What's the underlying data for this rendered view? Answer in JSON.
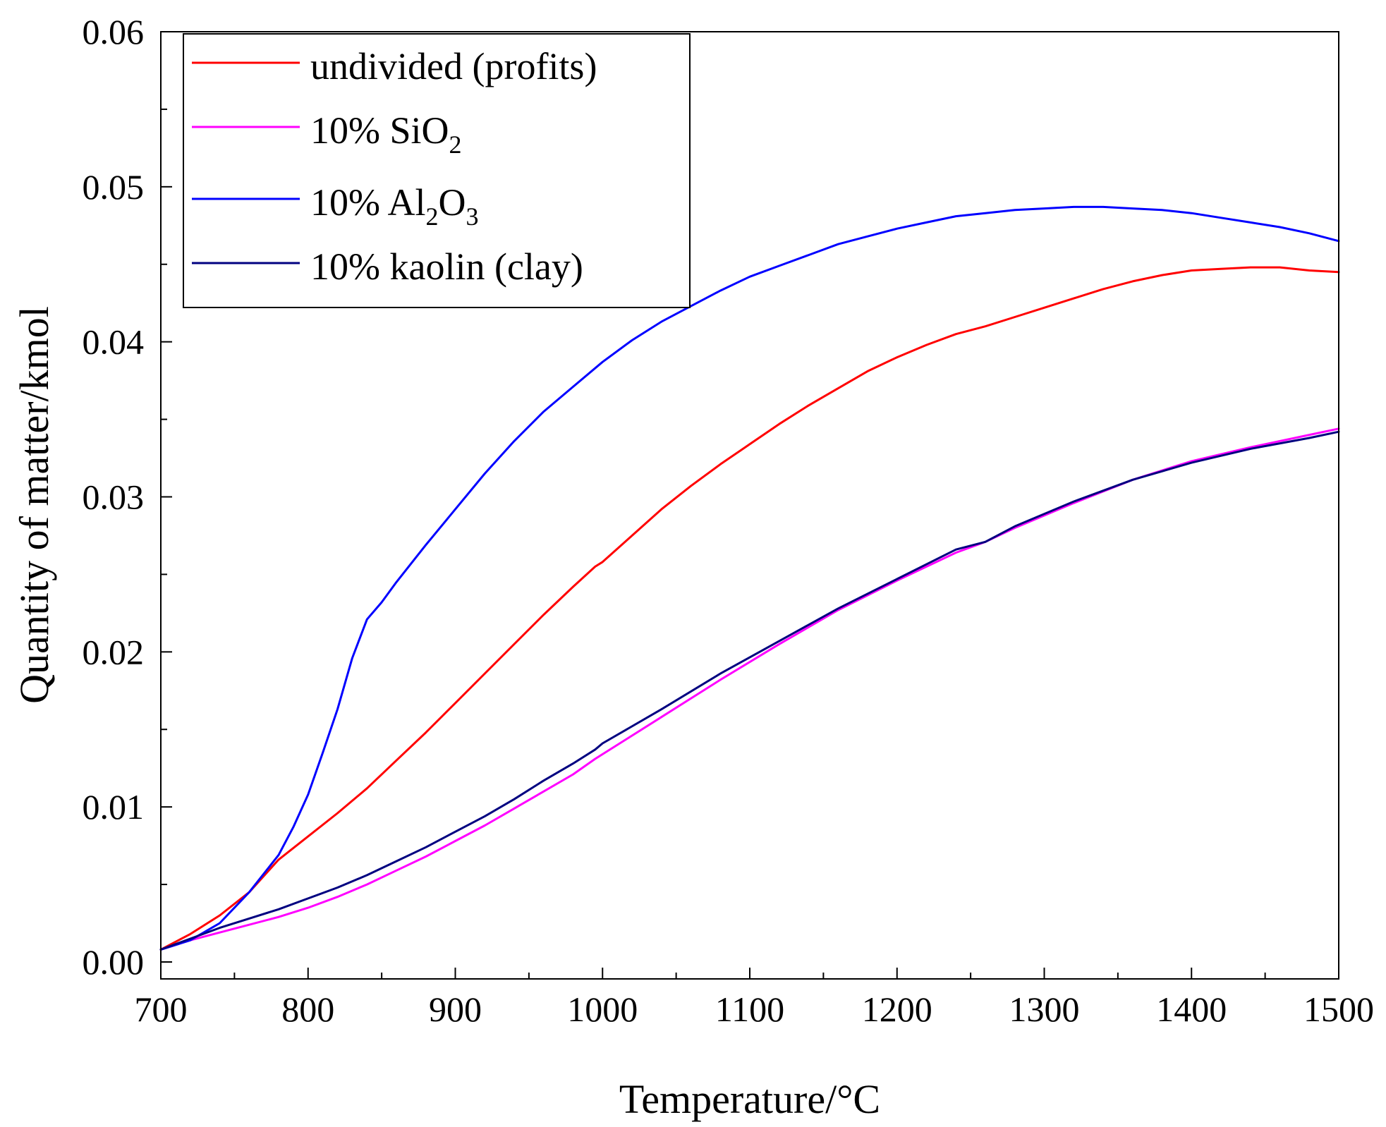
{
  "chart_data": {
    "type": "line",
    "title": "",
    "xlabel": "Temperature/°C",
    "ylabel": "Quantity of matter/kmol",
    "xlim": [
      700,
      1500
    ],
    "ylim": [
      0.0,
      0.06
    ],
    "xticks": [
      700,
      800,
      900,
      1000,
      1100,
      1200,
      1300,
      1400,
      1500
    ],
    "xtick_labels": [
      "700",
      "800",
      "900",
      "1000",
      "1100",
      "1200",
      "1300",
      "1400",
      "1500"
    ],
    "yticks": [
      0.0,
      0.01,
      0.02,
      0.03,
      0.04,
      0.05,
      0.06
    ],
    "ytick_labels": [
      "0.00",
      "0.01",
      "0.02",
      "0.03",
      "0.04",
      "0.05",
      "0.06"
    ],
    "grid": false,
    "legend_position": "top-left",
    "legend": [
      {
        "name": "series_undivided",
        "base": "undivided (profits)",
        "sub": "",
        "tail": ""
      },
      {
        "name": "series_sio2",
        "base": "10% SiO",
        "sub": "2",
        "tail": ""
      },
      {
        "name": "series_al2o3",
        "base": "10% Al",
        "sub": "2",
        "tail": "O",
        "sub2": "3"
      },
      {
        "name": "series_kaolin",
        "base": "10% kaolin (clay)",
        "sub": "",
        "tail": ""
      }
    ],
    "series": [
      {
        "name": "undivided (profits)",
        "color": "#ff0000",
        "x": [
          700,
          720,
          740,
          760,
          780,
          800,
          820,
          840,
          860,
          880,
          900,
          920,
          940,
          960,
          980,
          995,
          1000,
          1020,
          1040,
          1060,
          1080,
          1100,
          1120,
          1140,
          1160,
          1180,
          1200,
          1220,
          1240,
          1260,
          1280,
          1300,
          1320,
          1340,
          1360,
          1380,
          1400,
          1420,
          1440,
          1460,
          1480,
          1500
        ],
        "y": [
          0.0008,
          0.0018,
          0.003,
          0.0045,
          0.0066,
          0.0081,
          0.0096,
          0.0112,
          0.013,
          0.0148,
          0.0167,
          0.0186,
          0.0205,
          0.0224,
          0.0242,
          0.0255,
          0.0258,
          0.0275,
          0.0292,
          0.0307,
          0.0321,
          0.0334,
          0.0347,
          0.0359,
          0.037,
          0.0381,
          0.039,
          0.0398,
          0.0405,
          0.041,
          0.0416,
          0.0422,
          0.0428,
          0.0434,
          0.0439,
          0.0443,
          0.0446,
          0.0447,
          0.0448,
          0.0448,
          0.0446,
          0.0445
        ]
      },
      {
        "name": "10% SiO2",
        "color": "#ff00ff",
        "x": [
          700,
          720,
          740,
          760,
          780,
          800,
          820,
          840,
          860,
          880,
          900,
          920,
          940,
          960,
          980,
          995,
          1000,
          1040,
          1080,
          1120,
          1160,
          1200,
          1240,
          1260,
          1280,
          1320,
          1360,
          1400,
          1440,
          1480,
          1500
        ],
        "y": [
          0.0008,
          0.0014,
          0.0019,
          0.0024,
          0.0029,
          0.0035,
          0.0042,
          0.005,
          0.0059,
          0.0068,
          0.0078,
          0.0088,
          0.0099,
          0.011,
          0.0121,
          0.0131,
          0.0134,
          0.0158,
          0.0182,
          0.0205,
          0.0227,
          0.0246,
          0.0264,
          0.0271,
          0.028,
          0.0296,
          0.0311,
          0.0323,
          0.0332,
          0.034,
          0.0344
        ]
      },
      {
        "name": "10% Al2O3",
        "color": "#0000ff",
        "x": [
          700,
          720,
          740,
          760,
          780,
          790,
          800,
          810,
          820,
          830,
          840,
          850,
          860,
          880,
          900,
          920,
          940,
          960,
          980,
          1000,
          1020,
          1040,
          1060,
          1080,
          1100,
          1120,
          1140,
          1160,
          1180,
          1200,
          1220,
          1240,
          1260,
          1280,
          1300,
          1320,
          1340,
          1360,
          1380,
          1400,
          1420,
          1440,
          1460,
          1480,
          1500
        ],
        "y": [
          0.0008,
          0.0014,
          0.0025,
          0.0045,
          0.0069,
          0.0087,
          0.0108,
          0.0135,
          0.0163,
          0.0196,
          0.0221,
          0.0232,
          0.0245,
          0.0269,
          0.0292,
          0.0315,
          0.0336,
          0.0355,
          0.0371,
          0.0387,
          0.0401,
          0.0413,
          0.0423,
          0.0433,
          0.0442,
          0.0449,
          0.0456,
          0.0463,
          0.0468,
          0.0473,
          0.0477,
          0.0481,
          0.0483,
          0.0485,
          0.0486,
          0.0487,
          0.0487,
          0.0486,
          0.0485,
          0.0483,
          0.048,
          0.0477,
          0.0474,
          0.047,
          0.0465
        ]
      },
      {
        "name": "10% kaolin (clay)",
        "color": "#000080",
        "x": [
          700,
          720,
          740,
          760,
          780,
          800,
          820,
          840,
          860,
          880,
          900,
          920,
          940,
          960,
          980,
          995,
          1000,
          1040,
          1080,
          1120,
          1160,
          1200,
          1240,
          1260,
          1280,
          1320,
          1360,
          1400,
          1440,
          1480,
          1500
        ],
        "y": [
          0.0008,
          0.0015,
          0.0022,
          0.0028,
          0.0034,
          0.0041,
          0.0048,
          0.0056,
          0.0065,
          0.0074,
          0.0084,
          0.0094,
          0.0105,
          0.0117,
          0.0128,
          0.0137,
          0.0141,
          0.0163,
          0.0186,
          0.0207,
          0.0228,
          0.0247,
          0.0266,
          0.0271,
          0.0281,
          0.0297,
          0.0311,
          0.0322,
          0.0331,
          0.0338,
          0.0342
        ]
      }
    ]
  }
}
